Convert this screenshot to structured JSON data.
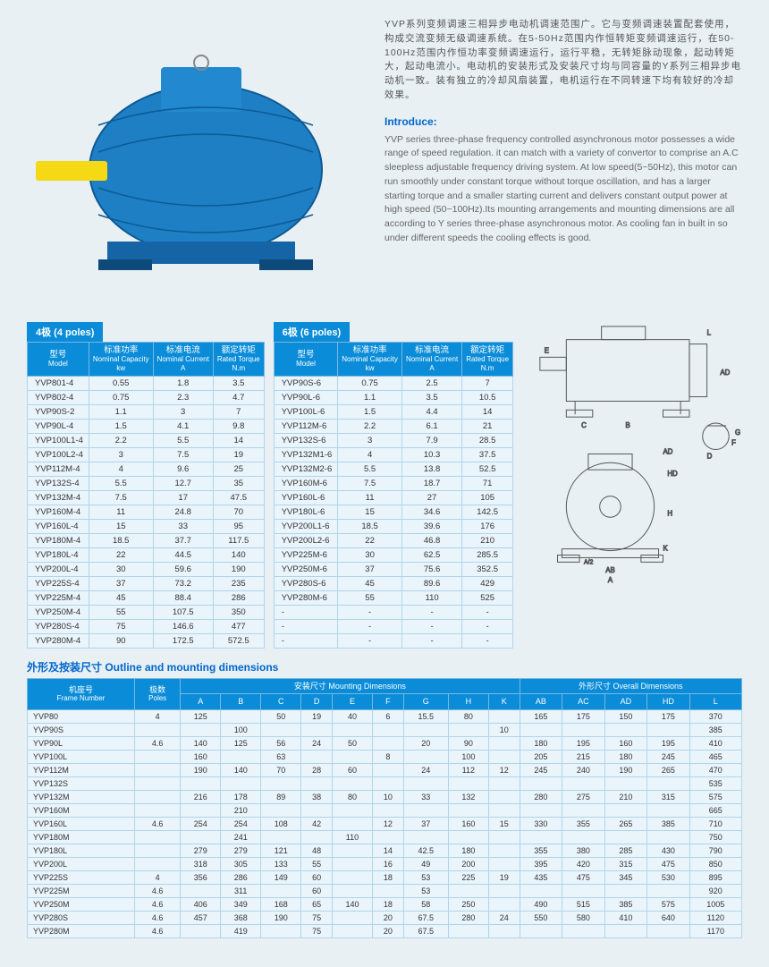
{
  "colors": {
    "header_bg": "#0a8cd8",
    "header_fg": "#ffffff",
    "cell_bg": "#eaf4fb",
    "cell_border": "#b0d4ec",
    "page_bg": "#e8f0f4",
    "heading_color": "#0066cc",
    "motor_body": "#1e7fc4",
    "motor_shaft": "#f5d915"
  },
  "description_cn": "YVP系列变频调速三相异步电动机调速范围广。它与变频调速装置配套使用，构成交流变频无级调速系统。在5-50Hz范围内作恒转矩变频调速运行，在50-100Hz范围内作恒功率变频调速运行，运行平稳，无转矩脉动现象，起动转矩大，起动电流小。电动机的安装形式及安装尺寸均与同容量的Y系列三相异步电动机一致。装有独立的冷却风扇装置，电机运行在不同转速下均有较好的冷却效果。",
  "intro_heading": "Introduce:",
  "description_en": "YVP series three-phase frequency controlled asynchronous motor possesses a wide range of speed regulation. it can match with a variety of convertor to comprise an A.C sleepless adjustable frequency driving system. At low speed(5~50Hz), this motor can run smoothly under constant torque without torque oscillation, and has a larger starting torque and a smaller starting current and delivers constant output power at high speed (50~100Hz).Its mounting arrangements and mounting dimensions are all according to Y series three-phase asynchronous motor. As cooling fan in built in so under different speeds the cooling effects is good.",
  "table4_title": "4极 (4 poles)",
  "table6_title": "6极 (6 poles)",
  "spec_headers": {
    "model_cn": "型号",
    "model_en": "Model",
    "cap_cn": "标准功率",
    "cap_en": "Nominal Capacity",
    "cap_unit": "kw",
    "cur_cn": "标准电流",
    "cur_en": "Nominal Current",
    "cur_unit": "A",
    "tor_cn": "额定转矩",
    "tor_en": "Rated Torque",
    "tor_unit": "N.m"
  },
  "table4_rows": [
    [
      "YVP801-4",
      "0.55",
      "1.8",
      "3.5"
    ],
    [
      "YVP802-4",
      "0.75",
      "2.3",
      "4.7"
    ],
    [
      "YVP90S-2",
      "1.1",
      "3",
      "7"
    ],
    [
      "YVP90L-4",
      "1.5",
      "4.1",
      "9.8"
    ],
    [
      "YVP100L1-4",
      "2.2",
      "5.5",
      "14"
    ],
    [
      "YVP100L2-4",
      "3",
      "7.5",
      "19"
    ],
    [
      "YVP112M-4",
      "4",
      "9.6",
      "25"
    ],
    [
      "YVP132S-4",
      "5.5",
      "12.7",
      "35"
    ],
    [
      "YVP132M-4",
      "7.5",
      "17",
      "47.5"
    ],
    [
      "YVP160M-4",
      "11",
      "24.8",
      "70"
    ],
    [
      "YVP160L-4",
      "15",
      "33",
      "95"
    ],
    [
      "YVP180M-4",
      "18.5",
      "37.7",
      "117.5"
    ],
    [
      "YVP180L-4",
      "22",
      "44.5",
      "140"
    ],
    [
      "YVP200L-4",
      "30",
      "59.6",
      "190"
    ],
    [
      "YVP225S-4",
      "37",
      "73.2",
      "235"
    ],
    [
      "YVP225M-4",
      "45",
      "88.4",
      "286"
    ],
    [
      "YVP250M-4",
      "55",
      "107.5",
      "350"
    ],
    [
      "YVP280S-4",
      "75",
      "146.6",
      "477"
    ],
    [
      "YVP280M-4",
      "90",
      "172.5",
      "572.5"
    ]
  ],
  "table6_rows": [
    [
      "YVP90S-6",
      "0.75",
      "2.5",
      "7"
    ],
    [
      "YVP90L-6",
      "1.1",
      "3.5",
      "10.5"
    ],
    [
      "YVP100L-6",
      "1.5",
      "4.4",
      "14"
    ],
    [
      "YVP112M-6",
      "2.2",
      "6.1",
      "21"
    ],
    [
      "YVP132S-6",
      "3",
      "7.9",
      "28.5"
    ],
    [
      "YVP132M1-6",
      "4",
      "10.3",
      "37.5"
    ],
    [
      "YVP132M2-6",
      "5.5",
      "13.8",
      "52.5"
    ],
    [
      "YVP160M-6",
      "7.5",
      "18.7",
      "71"
    ],
    [
      "YVP160L-6",
      "11",
      "27",
      "105"
    ],
    [
      "YVP180L-6",
      "15",
      "34.6",
      "142.5"
    ],
    [
      "YVP200L1-6",
      "18.5",
      "39.6",
      "176"
    ],
    [
      "YVP200L2-6",
      "22",
      "46.8",
      "210"
    ],
    [
      "YVP225M-6",
      "30",
      "62.5",
      "285.5"
    ],
    [
      "YVP250M-6",
      "37",
      "75.6",
      "352.5"
    ],
    [
      "YVP280S-6",
      "45",
      "89.6",
      "429"
    ],
    [
      "YVP280M-6",
      "55",
      "110",
      "525"
    ],
    [
      "-",
      "-",
      "-",
      "-"
    ],
    [
      "-",
      "-",
      "-",
      "-"
    ],
    [
      "-",
      "-",
      "-",
      "-"
    ]
  ],
  "outline_heading": "外形及按装尺寸 Outline and mounting dimensions",
  "mount_headers": {
    "frame_cn": "机座号",
    "frame_en": "Frame Number",
    "poles_cn": "极数",
    "poles_en": "Poles",
    "mount_cn": "安装尺寸 Mounting Dimensions",
    "overall_cn": "外形尺寸 Overall Dimensions",
    "cols_mount": [
      "A",
      "B",
      "C",
      "D",
      "E",
      "F",
      "G",
      "H",
      "K"
    ],
    "cols_overall": [
      "AB",
      "AC",
      "AD",
      "HD",
      "L"
    ]
  },
  "mount_rows": [
    {
      "frame": "YVP80",
      "poles": "4",
      "A": "125",
      "B": "",
      "C": "50",
      "D": "19",
      "E": "40",
      "F": "6",
      "G": "15.5",
      "H": "80",
      "K": "",
      "AB": "165",
      "AC": "175",
      "AD": "150",
      "HD": "175",
      "L": "370"
    },
    {
      "frame": "YVP90S",
      "poles": "",
      "A": "",
      "B": "100",
      "C": "",
      "D": "",
      "E": "",
      "F": "",
      "G": "",
      "H": "",
      "K": "10",
      "AB": "",
      "AC": "",
      "AD": "",
      "HD": "",
      "L": "385"
    },
    {
      "frame": "YVP90L",
      "poles": "4.6",
      "A": "140",
      "B": "125",
      "C": "56",
      "D": "24",
      "E": "50",
      "F": "",
      "G": "20",
      "H": "90",
      "K": "",
      "AB": "180",
      "AC": "195",
      "AD": "160",
      "HD": "195",
      "L": "410"
    },
    {
      "frame": "YVP100L",
      "poles": "",
      "A": "160",
      "B": "",
      "C": "63",
      "D": "",
      "E": "",
      "F": "8",
      "G": "",
      "H": "100",
      "K": "",
      "AB": "205",
      "AC": "215",
      "AD": "180",
      "HD": "245",
      "L": "465"
    },
    {
      "frame": "YVP112M",
      "poles": "",
      "A": "190",
      "B": "140",
      "C": "70",
      "D": "28",
      "E": "60",
      "F": "",
      "G": "24",
      "H": "112",
      "K": "12",
      "AB": "245",
      "AC": "240",
      "AD": "190",
      "HD": "265",
      "L": "470"
    },
    {
      "frame": "YVP132S",
      "poles": "",
      "A": "",
      "B": "",
      "C": "",
      "D": "",
      "E": "",
      "F": "",
      "G": "",
      "H": "",
      "K": "",
      "AB": "",
      "AC": "",
      "AD": "",
      "HD": "",
      "L": "535"
    },
    {
      "frame": "YVP132M",
      "poles": "",
      "A": "216",
      "B": "178",
      "C": "89",
      "D": "38",
      "E": "80",
      "F": "10",
      "G": "33",
      "H": "132",
      "K": "",
      "AB": "280",
      "AC": "275",
      "AD": "210",
      "HD": "315",
      "L": "575"
    },
    {
      "frame": "YVP160M",
      "poles": "",
      "A": "",
      "B": "210",
      "C": "",
      "D": "",
      "E": "",
      "F": "",
      "G": "",
      "H": "",
      "K": "",
      "AB": "",
      "AC": "",
      "AD": "",
      "HD": "",
      "L": "665"
    },
    {
      "frame": "YVP160L",
      "poles": "4.6",
      "A": "254",
      "B": "254",
      "C": "108",
      "D": "42",
      "E": "",
      "F": "12",
      "G": "37",
      "H": "160",
      "K": "15",
      "AB": "330",
      "AC": "355",
      "AD": "265",
      "HD": "385",
      "L": "710"
    },
    {
      "frame": "YVP180M",
      "poles": "",
      "A": "",
      "B": "241",
      "C": "",
      "D": "",
      "E": "110",
      "F": "",
      "G": "",
      "H": "",
      "K": "",
      "AB": "",
      "AC": "",
      "AD": "",
      "HD": "",
      "L": "750"
    },
    {
      "frame": "YVP180L",
      "poles": "",
      "A": "279",
      "B": "279",
      "C": "121",
      "D": "48",
      "E": "",
      "F": "14",
      "G": "42.5",
      "H": "180",
      "K": "",
      "AB": "355",
      "AC": "380",
      "AD": "285",
      "HD": "430",
      "L": "790"
    },
    {
      "frame": "YVP200L",
      "poles": "",
      "A": "318",
      "B": "305",
      "C": "133",
      "D": "55",
      "E": "",
      "F": "16",
      "G": "49",
      "H": "200",
      "K": "",
      "AB": "395",
      "AC": "420",
      "AD": "315",
      "HD": "475",
      "L": "850"
    },
    {
      "frame": "YVP225S",
      "poles": "4",
      "A": "356",
      "B": "286",
      "C": "149",
      "D": "60",
      "E": "",
      "F": "18",
      "G": "53",
      "H": "225",
      "K": "19",
      "AB": "435",
      "AC": "475",
      "AD": "345",
      "HD": "530",
      "L": "895"
    },
    {
      "frame": "YVP225M",
      "poles": "4.6",
      "A": "",
      "B": "311",
      "C": "",
      "D": "60",
      "E": "",
      "F": "",
      "G": "53",
      "H": "",
      "K": "",
      "AB": "",
      "AC": "",
      "AD": "",
      "HD": "",
      "L": "920"
    },
    {
      "frame": "YVP250M",
      "poles": "4.6",
      "A": "406",
      "B": "349",
      "C": "168",
      "D": "65",
      "E": "140",
      "F": "18",
      "G": "58",
      "H": "250",
      "K": "",
      "AB": "490",
      "AC": "515",
      "AD": "385",
      "HD": "575",
      "L": "1005"
    },
    {
      "frame": "YVP280S",
      "poles": "4.6",
      "A": "457",
      "B": "368",
      "C": "190",
      "D": "75",
      "E": "",
      "F": "20",
      "G": "67.5",
      "H": "280",
      "K": "24",
      "AB": "550",
      "AC": "580",
      "AD": "410",
      "HD": "640",
      "L": "1120"
    },
    {
      "frame": "YVP280M",
      "poles": "4.6",
      "A": "",
      "B": "419",
      "C": "",
      "D": "75",
      "E": "",
      "F": "20",
      "G": "67.5",
      "H": "",
      "K": "",
      "AB": "",
      "AC": "",
      "AD": "",
      "HD": "",
      "L": "1170"
    }
  ]
}
